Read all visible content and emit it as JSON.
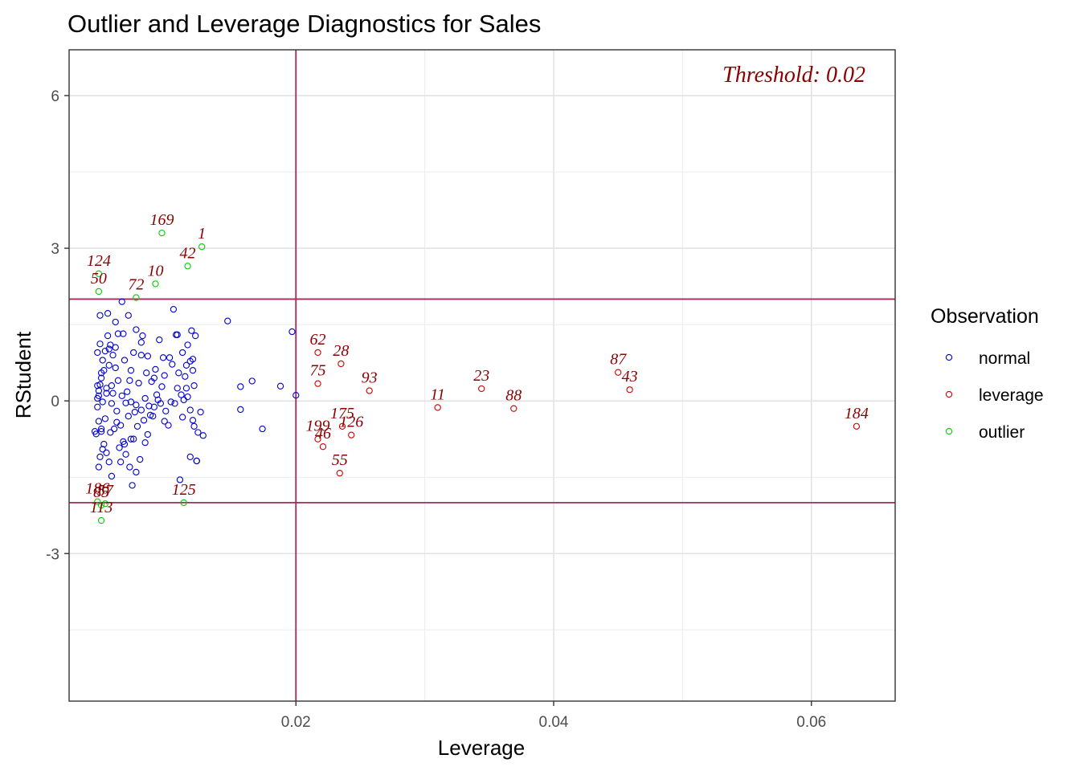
{
  "chart_data": {
    "type": "scatter",
    "title": "Outlier and Leverage Diagnostics for Sales",
    "xlabel": "Leverage",
    "ylabel": "RStudent",
    "xlim": [
      0.0024,
      0.0665
    ],
    "ylim": [
      -5.9,
      6.9
    ],
    "x_ticks": [
      {
        "value": 0.02,
        "label": "0.02"
      },
      {
        "value": 0.04,
        "label": "0.04"
      },
      {
        "value": 0.06,
        "label": "0.06"
      }
    ],
    "y_ticks": [
      {
        "value": -3,
        "label": "-3"
      },
      {
        "value": 0,
        "label": "0"
      },
      {
        "value": 3,
        "label": "3"
      },
      {
        "value": 6,
        "label": "6"
      }
    ],
    "grid": true,
    "reference_lines": {
      "vertical": 0.02,
      "horizontal": [
        2,
        -2
      ],
      "color": "#a8285e"
    },
    "annotation": "Threshold: 0.02",
    "legend": {
      "title": "Observation",
      "position": "right",
      "entries": [
        {
          "name": "normal",
          "color": "#0000cd"
        },
        {
          "name": "leverage",
          "color": "#cd0000"
        },
        {
          "name": "outlier",
          "color": "#00cd00"
        }
      ]
    },
    "series": [
      {
        "name": "normal",
        "color": "#0000cd",
        "points": [
          [
            0.0048,
            1.68
          ],
          [
            0.0054,
            1.72
          ],
          [
            0.006,
            1.55
          ],
          [
            0.0065,
            1.95
          ],
          [
            0.007,
            1.68
          ],
          [
            0.0076,
            1.4
          ],
          [
            0.0081,
            1.28
          ],
          [
            0.0097,
            0.85
          ],
          [
            0.0105,
            1.8
          ],
          [
            0.0108,
            1.3
          ],
          [
            0.0112,
            0.95
          ],
          [
            0.0116,
            1.1
          ],
          [
            0.0119,
            1.38
          ],
          [
            0.0122,
            1.28
          ],
          [
            0.0118,
            0.78
          ],
          [
            0.012,
            0.6
          ],
          [
            0.0114,
            0.48
          ],
          [
            0.0108,
            0.25
          ],
          [
            0.0111,
            0.12
          ],
          [
            0.0116,
            0.08
          ],
          [
            0.0121,
            0.3
          ],
          [
            0.0118,
            -0.18
          ],
          [
            0.0126,
            -0.22
          ],
          [
            0.012,
            -0.38
          ],
          [
            0.0128,
            -0.68
          ],
          [
            0.0124,
            -0.62
          ],
          [
            0.0118,
            -1.1
          ],
          [
            0.0123,
            -1.18
          ],
          [
            0.011,
            -1.55
          ],
          [
            0.0103,
            -0.02
          ],
          [
            0.0096,
            0.28
          ],
          [
            0.0092,
            0.12
          ],
          [
            0.0089,
            -0.3
          ],
          [
            0.0085,
            -0.66
          ],
          [
            0.0083,
            -0.82
          ],
          [
            0.0079,
            -1.15
          ],
          [
            0.0076,
            -1.4
          ],
          [
            0.0073,
            -1.66
          ],
          [
            0.007,
            -0.3
          ],
          [
            0.0068,
            -0.04
          ],
          [
            0.0065,
            0.1
          ],
          [
            0.0062,
            0.4
          ],
          [
            0.006,
            0.65
          ],
          [
            0.0058,
            0.9
          ],
          [
            0.0056,
            1.1
          ],
          [
            0.0054,
            1.28
          ],
          [
            0.0052,
            0.98
          ],
          [
            0.005,
            0.8
          ],
          [
            0.0049,
            0.55
          ],
          [
            0.0048,
            0.32
          ],
          [
            0.0047,
            0.1
          ],
          [
            0.0046,
            -0.12
          ],
          [
            0.0047,
            -0.4
          ],
          [
            0.0049,
            -0.6
          ],
          [
            0.0051,
            -0.85
          ],
          [
            0.0053,
            -1.02
          ],
          [
            0.0055,
            -1.2
          ],
          [
            0.0057,
            -1.48
          ],
          [
            0.0052,
            -0.35
          ],
          [
            0.005,
            -0.95
          ],
          [
            0.0048,
            -1.1
          ],
          [
            0.0047,
            0.2
          ],
          [
            0.0046,
            0.05
          ],
          [
            0.0049,
            0.45
          ],
          [
            0.0051,
            0.6
          ],
          [
            0.0053,
            0.25
          ],
          [
            0.0055,
            0.7
          ],
          [
            0.0058,
            0.15
          ],
          [
            0.0061,
            -0.2
          ],
          [
            0.0064,
            -0.48
          ],
          [
            0.0066,
            -0.8
          ],
          [
            0.0068,
            -1.05
          ],
          [
            0.0071,
            -1.3
          ],
          [
            0.0074,
            -0.75
          ],
          [
            0.0077,
            -0.5
          ],
          [
            0.008,
            -0.18
          ],
          [
            0.0083,
            0.05
          ],
          [
            0.0086,
            -0.1
          ],
          [
            0.0088,
            0.38
          ],
          [
            0.0091,
            0.62
          ],
          [
            0.0094,
            1.2
          ],
          [
            0.0098,
            -0.4
          ],
          [
            0.0101,
            -0.48
          ],
          [
            0.0106,
            -0.05
          ],
          [
            0.0113,
            0.02
          ],
          [
            0.0062,
            1.32
          ],
          [
            0.0074,
            0.95
          ],
          [
            0.008,
            1.15
          ],
          [
            0.0085,
            0.88
          ],
          [
            0.0098,
            0.5
          ],
          [
            0.0104,
            0.72
          ],
          [
            0.0107,
            1.3
          ],
          [
            0.0112,
            -0.32
          ],
          [
            0.012,
            0.82
          ],
          [
            0.0045,
            -0.65
          ],
          [
            0.0046,
            0.95
          ],
          [
            0.0048,
            1.12
          ],
          [
            0.005,
            -0.02
          ],
          [
            0.0057,
            0.3
          ],
          [
            0.0059,
            -0.55
          ],
          [
            0.0063,
            -0.92
          ],
          [
            0.0067,
            -0.85
          ],
          [
            0.0069,
            0.18
          ],
          [
            0.0072,
            -0.02
          ],
          [
            0.0075,
            -0.22
          ],
          [
            0.0078,
            0.35
          ],
          [
            0.0082,
            -0.38
          ],
          [
            0.0087,
            -0.28
          ],
          [
            0.009,
            -0.12
          ],
          [
            0.0093,
            0.02
          ],
          [
            0.0099,
            -0.2
          ],
          [
            0.0102,
            0.85
          ],
          [
            0.0109,
            0.55
          ],
          [
            0.0115,
            0.25
          ],
          [
            0.0123,
            -1.18
          ],
          [
            0.0147,
            1.57
          ],
          [
            0.0157,
            0.28
          ],
          [
            0.0157,
            -0.17
          ],
          [
            0.0166,
            0.39
          ],
          [
            0.0174,
            -0.55
          ],
          [
            0.0188,
            0.29
          ],
          [
            0.0197,
            1.36
          ],
          [
            0.02,
            0.11
          ],
          [
            0.0055,
            1.02
          ],
          [
            0.006,
            1.05
          ],
          [
            0.0072,
            0.6
          ],
          [
            0.009,
            0.45
          ],
          [
            0.0056,
            -0.62
          ],
          [
            0.0066,
            1.32
          ],
          [
            0.008,
            0.9
          ],
          [
            0.0046,
            0.3
          ],
          [
            0.0049,
            -0.55
          ],
          [
            0.0057,
            -0.05
          ],
          [
            0.0061,
            -0.42
          ],
          [
            0.0064,
            -1.2
          ],
          [
            0.0067,
            0.8
          ],
          [
            0.0071,
            0.4
          ],
          [
            0.0076,
            -0.08
          ],
          [
            0.0084,
            0.55
          ],
          [
            0.0095,
            -0.05
          ],
          [
            0.0115,
            0.7
          ],
          [
            0.0121,
            -0.5
          ],
          [
            0.0044,
            -0.6
          ],
          [
            0.0047,
            -1.3
          ],
          [
            0.0053,
            0.15
          ],
          [
            0.0072,
            -0.75
          ]
        ]
      },
      {
        "name": "leverage",
        "color": "#cd0000",
        "points": [
          {
            "x": 0.0217,
            "y": 0.95,
            "label": "62"
          },
          {
            "x": 0.0235,
            "y": 0.73,
            "label": "28"
          },
          {
            "x": 0.0217,
            "y": 0.34,
            "label": "75"
          },
          {
            "x": 0.0257,
            "y": 0.2,
            "label": "93"
          },
          {
            "x": 0.031,
            "y": -0.13,
            "label": "11"
          },
          {
            "x": 0.0344,
            "y": 0.24,
            "label": "23"
          },
          {
            "x": 0.0369,
            "y": -0.15,
            "label": "88"
          },
          {
            "x": 0.045,
            "y": 0.56,
            "label": "87"
          },
          {
            "x": 0.0459,
            "y": 0.22,
            "label": "43"
          },
          {
            "x": 0.0635,
            "y": -0.5,
            "label": "184"
          },
          {
            "x": 0.0236,
            "y": -0.5,
            "label": "175"
          },
          {
            "x": 0.0243,
            "y": -0.67,
            "label": "126"
          },
          {
            "x": 0.0217,
            "y": -0.75,
            "label": "199"
          },
          {
            "x": 0.0221,
            "y": -0.9,
            "label": "46"
          },
          {
            "x": 0.0234,
            "y": -1.42,
            "label": "55"
          }
        ]
      },
      {
        "name": "outlier",
        "color": "#00cd00",
        "points": [
          {
            "x": 0.0096,
            "y": 3.3,
            "label": "169"
          },
          {
            "x": 0.0127,
            "y": 3.03,
            "label": "1"
          },
          {
            "x": 0.0116,
            "y": 2.65,
            "label": "42"
          },
          {
            "x": 0.0091,
            "y": 2.3,
            "label": "10"
          },
          {
            "x": 0.0076,
            "y": 2.03,
            "label": "72"
          },
          {
            "x": 0.0047,
            "y": 2.5,
            "label": "124"
          },
          {
            "x": 0.0047,
            "y": 2.15,
            "label": "50"
          },
          {
            "x": 0.0113,
            "y": -2.0,
            "label": "125"
          },
          {
            "x": 0.0046,
            "y": -1.98,
            "label": "186"
          },
          {
            "x": 0.0052,
            "y": -2.02,
            "label": "57"
          },
          {
            "x": 0.0049,
            "y": -2.05,
            "label": "85"
          },
          {
            "x": 0.0049,
            "y": -2.35,
            "label": "113"
          }
        ]
      }
    ]
  }
}
